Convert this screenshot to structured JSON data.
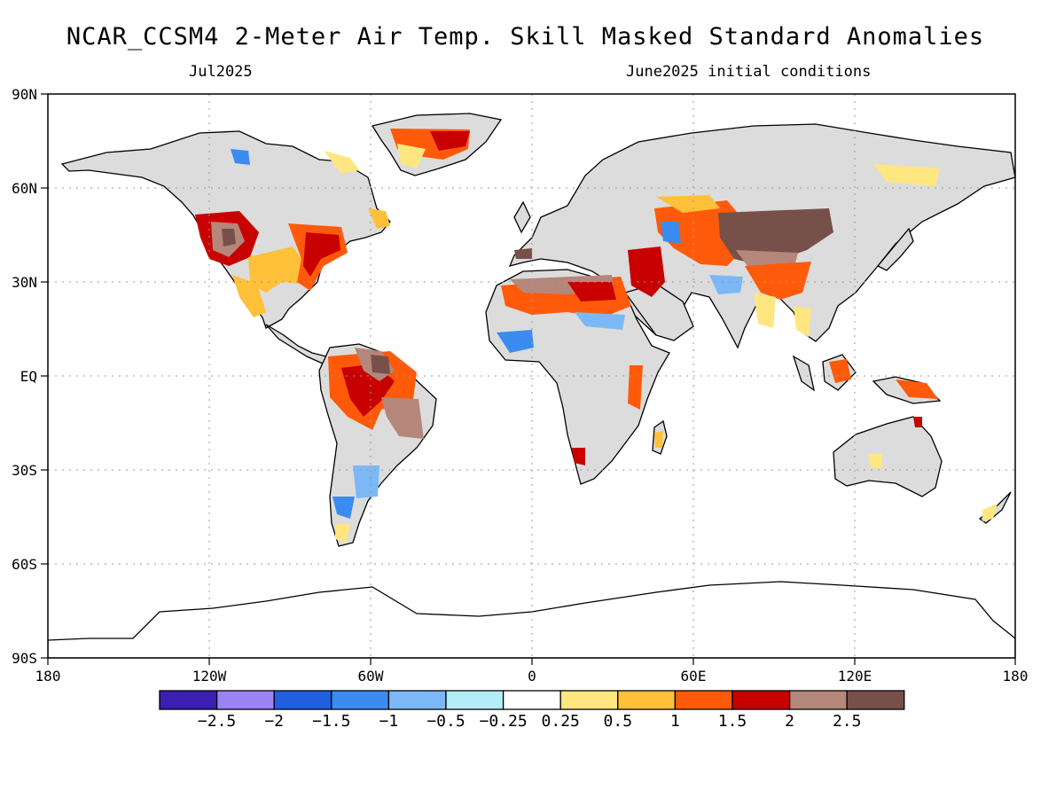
{
  "title": "NCAR_CCSM4 2-Meter Air Temp. Skill Masked Standard Anomalies",
  "subtitle_left": "Jul2025",
  "subtitle_right": "June2025 initial conditions",
  "lat_labels": [
    "90N",
    "60N",
    "30N",
    "EQ",
    "30S",
    "60S",
    "90S"
  ],
  "lon_labels": [
    "180",
    "120W",
    "60W",
    "0",
    "60E",
    "120E",
    "180"
  ],
  "colorbar": {
    "colors": [
      "#3a1fb0",
      "#9b82f5",
      "#1f5fe0",
      "#3a8cf0",
      "#7bb8f5",
      "#b4ecf8",
      "#ffffff",
      "#ffe680",
      "#ffc03a",
      "#ff5a0a",
      "#c80000",
      "#b5867a",
      "#78504a"
    ],
    "labels": [
      "-2.5",
      "-2",
      "-1.5",
      "-1",
      "-0.5",
      "-0.25",
      "0.25",
      "0.5",
      "1",
      "1.5",
      "2",
      "2.5"
    ]
  },
  "colors": {
    "land_masked": "#dcdcdc",
    "ocean": "#ffffff",
    "coast": "#000000"
  }
}
